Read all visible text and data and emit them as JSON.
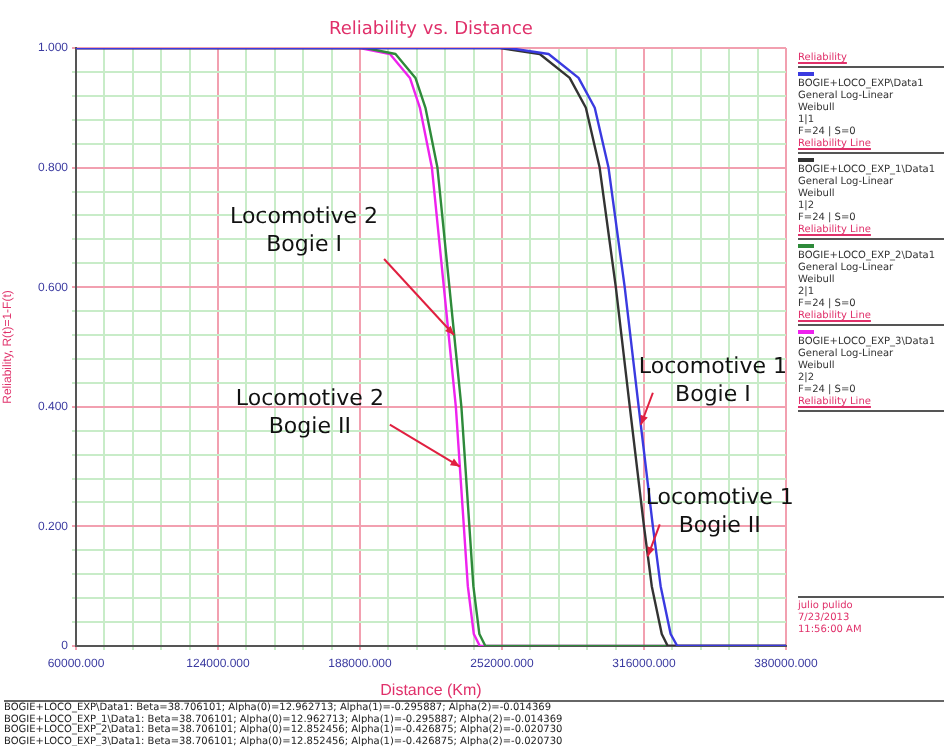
{
  "chart_data": {
    "type": "line",
    "title": "Reliability vs. Distance",
    "xlabel": "Distance (Km)",
    "ylabel": "Reliability, R(t)=1-F(t)",
    "legend_title": "Reliability",
    "legend": "right",
    "grid": true,
    "marker": "none",
    "line_style": "solid",
    "xlim": [
      60000,
      380000
    ],
    "ylim": [
      0,
      1
    ],
    "xticks": [
      {
        "value": 60000,
        "label": "60000.000"
      },
      {
        "value": 72800,
        "label": null
      },
      {
        "value": 85600,
        "label": null
      },
      {
        "value": 98400,
        "label": null
      },
      {
        "value": 111200,
        "label": null
      },
      {
        "value": 124000,
        "label": "124000.000"
      },
      {
        "value": 136800,
        "label": null
      },
      {
        "value": 149600,
        "label": null
      },
      {
        "value": 162400,
        "label": null
      },
      {
        "value": 175200,
        "label": null
      },
      {
        "value": 188000,
        "label": "188000.000"
      },
      {
        "value": 200800,
        "label": null
      },
      {
        "value": 213600,
        "label": null
      },
      {
        "value": 226400,
        "label": null
      },
      {
        "value": 239200,
        "label": null
      },
      {
        "value": 252000,
        "label": "252000.000"
      },
      {
        "value": 264800,
        "label": null
      },
      {
        "value": 277600,
        "label": null
      },
      {
        "value": 290400,
        "label": null
      },
      {
        "value": 303200,
        "label": null
      },
      {
        "value": 316000,
        "label": "316000.000"
      },
      {
        "value": 328800,
        "label": null
      },
      {
        "value": 341600,
        "label": null
      },
      {
        "value": 354400,
        "label": null
      },
      {
        "value": 367200,
        "label": null
      },
      {
        "value": 380000,
        "label": "380000.000"
      }
    ],
    "yticks": [
      0,
      {
        "value": 0.04,
        "label": null
      },
      {
        "value": 0.08,
        "label": null
      },
      {
        "value": 0.12,
        "label": null
      },
      {
        "value": 0.16,
        "label": null
      },
      {
        "value": 0.2,
        "label": "0.200"
      },
      {
        "value": 0.24,
        "label": null
      },
      {
        "value": 0.28,
        "label": null
      },
      {
        "value": 0.32,
        "label": null
      },
      {
        "value": 0.36,
        "label": null
      },
      {
        "value": 0.4,
        "label": "0.400"
      },
      {
        "value": 0.44,
        "label": null
      },
      {
        "value": 0.48,
        "label": null
      },
      {
        "value": 0.52,
        "label": null
      },
      {
        "value": 0.56,
        "label": null
      },
      {
        "value": 0.6,
        "label": "0.600"
      },
      {
        "value": 0.64,
        "label": null
      },
      {
        "value": 0.68,
        "label": null
      },
      {
        "value": 0.72,
        "label": null
      },
      {
        "value": 0.76,
        "label": null
      },
      {
        "value": 0.8,
        "label": "0.800"
      },
      {
        "value": 0.84,
        "label": null
      },
      {
        "value": 0.88,
        "label": null
      },
      {
        "value": 0.92,
        "label": null
      },
      {
        "value": 0.96,
        "label": null
      },
      {
        "value": 1,
        "label": "1.000"
      }
    ],
    "series": [
      {
        "name": "BOGIE+LOCO_EXP\\Data1\nGeneral Log-Linear\nWeibull\n1|1\nF=24 | S=0\nReliability Line",
        "color": "#3a3ae0",
        "x": [
          60000,
          255000,
          273000,
          286500,
          293800,
          300000,
          307300,
          313600,
          320000,
          323500,
          328000,
          331000,
          380000
        ],
        "values": [
          1,
          1,
          0.99,
          0.95,
          0.9,
          0.8,
          0.6,
          0.4,
          0.2,
          0.1,
          0.02,
          0,
          0
        ]
      },
      {
        "name": "BOGIE+LOCO_EXP_1\\Data1\nGeneral Log-Linear\nWeibull\n1|2\nF=24 | S=0\nReliability Line",
        "color": "#333333",
        "x": [
          60000,
          251000,
          269000,
          282500,
          289800,
          296000,
          303300,
          309600,
          316000,
          319500,
          324000,
          326700,
          380000
        ],
        "values": [
          1,
          1,
          0.99,
          0.95,
          0.9,
          0.8,
          0.6,
          0.4,
          0.2,
          0.1,
          0.02,
          0,
          0
        ]
      },
      {
        "name": "BOGIE+LOCO_EXP_2\\Data1\nGeneral Log-Linear\nWeibull\n2|1\nF=24 | S=0\nReliability Line",
        "color": "#2e8a3a",
        "x": [
          60000,
          190500,
          204000,
          213000,
          217500,
          222900,
          228300,
          233700,
          237300,
          239100,
          241800,
          244500,
          380000
        ],
        "values": [
          1,
          1,
          0.99,
          0.95,
          0.9,
          0.8,
          0.6,
          0.4,
          0.2,
          0.1,
          0.02,
          0,
          0
        ]
      },
      {
        "name": "BOGIE+LOCO_EXP_3\\Data1\nGeneral Log-Linear\nWeibull\n2|2\nF=24 | S=0\nReliability Line",
        "color": "#ee22ee",
        "x": [
          60000,
          188000,
          201500,
          210500,
          215000,
          220400,
          225800,
          231200,
          234800,
          236600,
          239300,
          242000,
          380000
        ],
        "values": [
          1,
          1,
          0.99,
          0.95,
          0.9,
          0.8,
          0.6,
          0.4,
          0.2,
          0.1,
          0.02,
          0,
          0
        ]
      }
    ],
    "annotations": [
      {
        "text": "Locomotive 2\nBogie I",
        "x": 230400,
        "y": 0.52
      },
      {
        "text": "Locomotive 2\nBogie II",
        "x": 233000,
        "y": 0.3
      },
      {
        "text": "Locomotive 1\nBogie I",
        "x": 314600,
        "y": 0.37
      },
      {
        "text": "Locomotive 1\nBogie II",
        "x": 317700,
        "y": 0.15
      },
      "julio pulido\n7/23/2013\n11:56:00 AM",
      "BOGIE+LOCO_EXP\\Data1: Beta=38.706101; Alpha(0)=12.962713; Alpha(1)=-0.295887; Alpha(2)=-0.014369",
      "BOGIE+LOCO_EXP_1\\Data1: Beta=38.706101; Alpha(0)=12.962713; Alpha(1)=-0.295887; Alpha(2)=-0.014369",
      "BOGIE+LOCO_EXP_2\\Data1: Beta=38.706101; Alpha(0)=12.852456; Alpha(1)=-0.426875; Alpha(2)=-0.020730",
      "BOGIE+LOCO_EXP_3\\Data1: Beta=38.706101; Alpha(0)=12.852456; Alpha(1)=-0.426875; Alpha(2)=-0.020730"
    ]
  }
}
